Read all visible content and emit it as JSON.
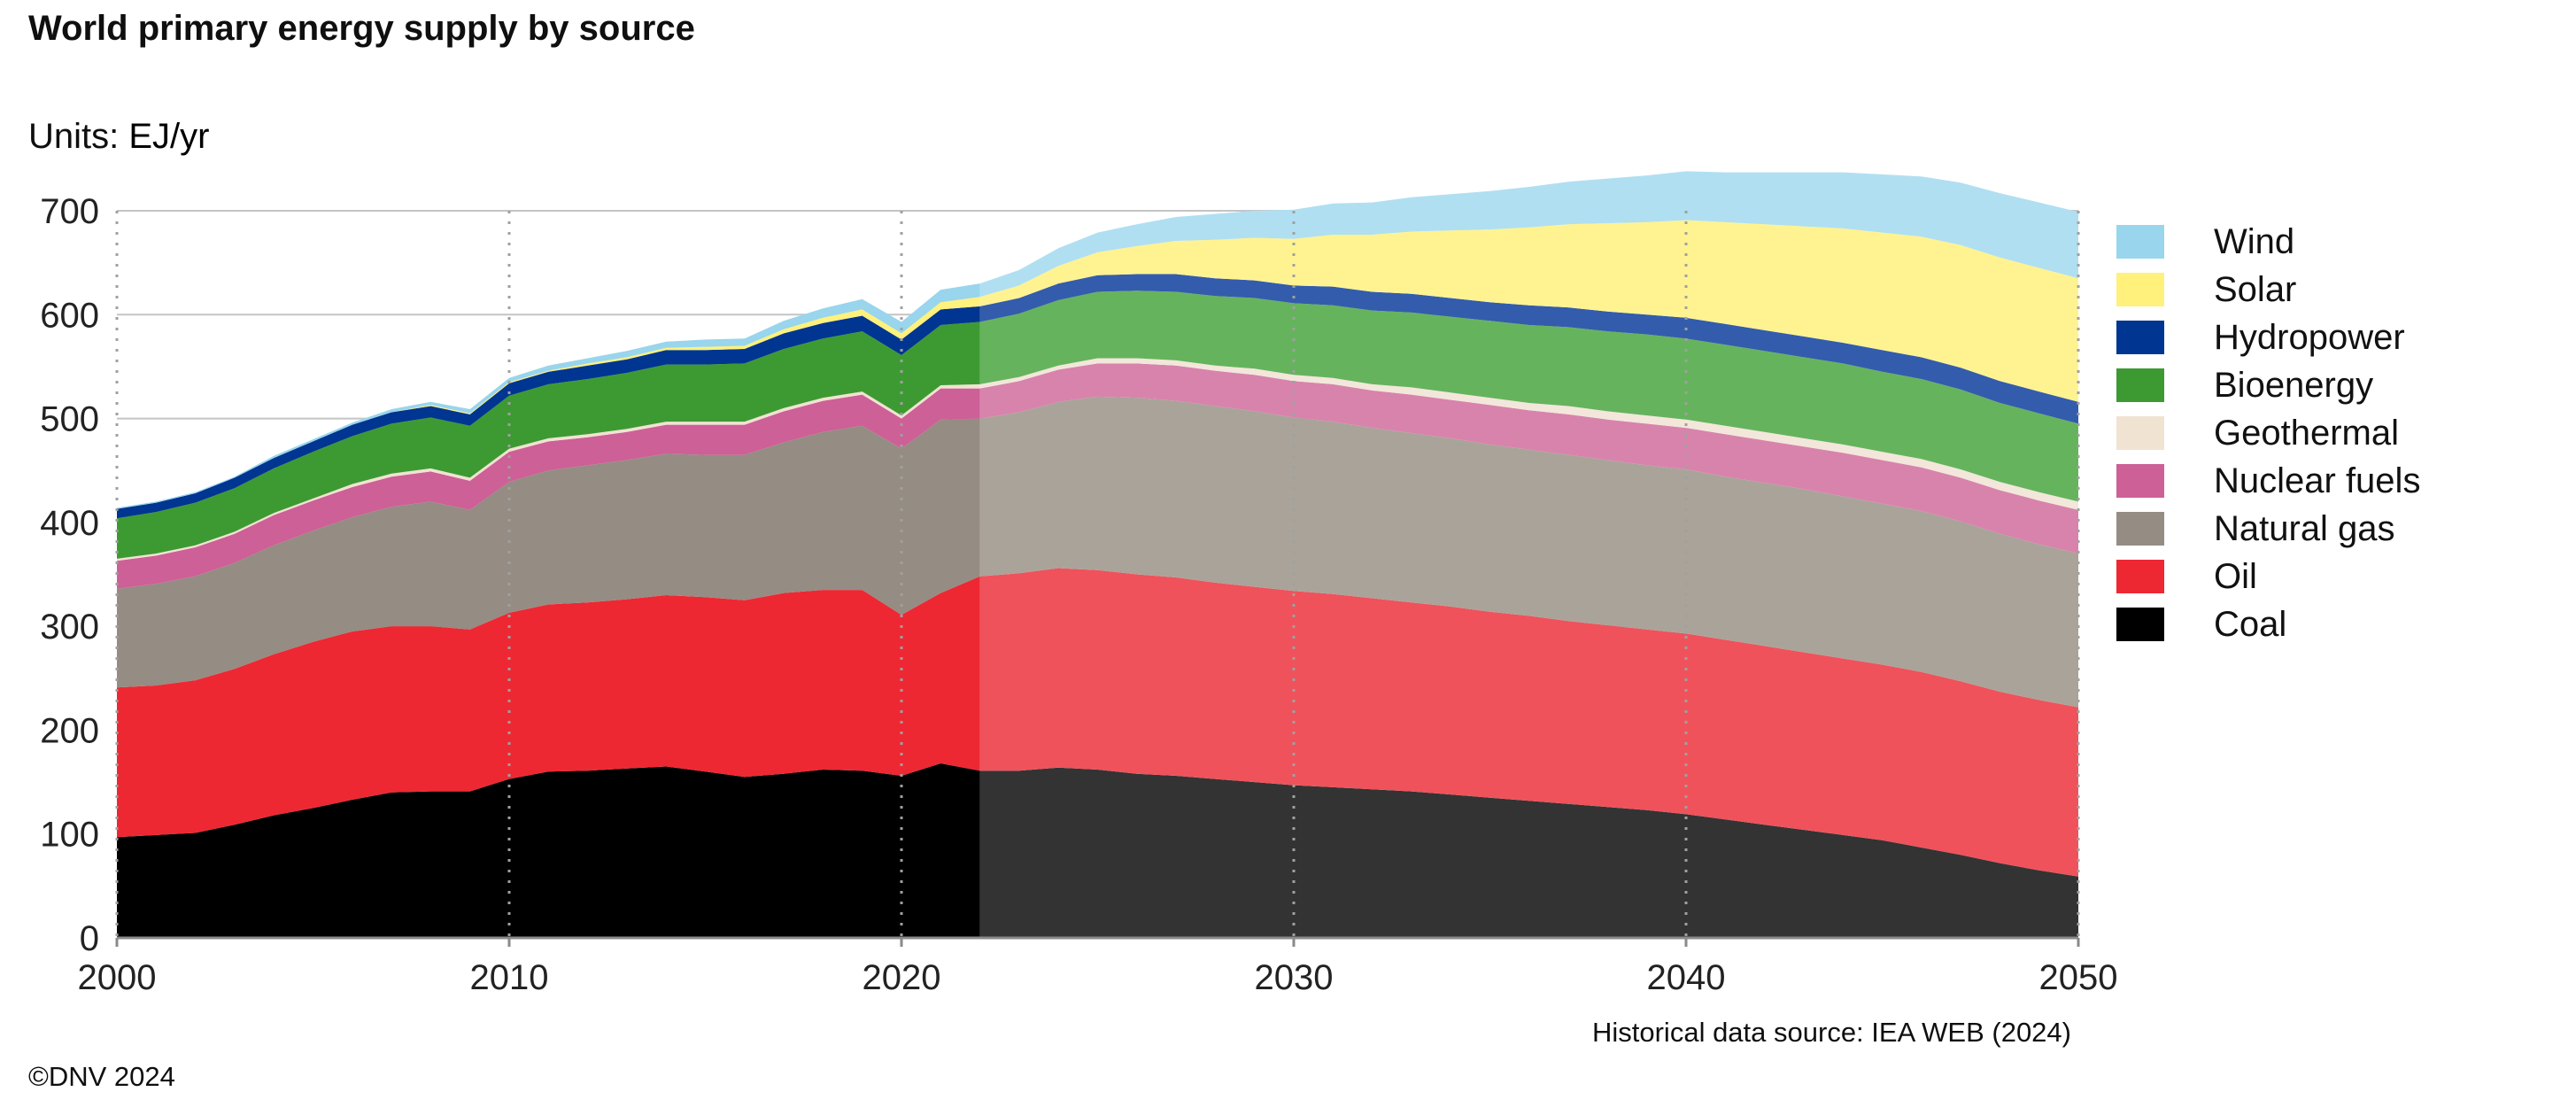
{
  "title": "World primary energy supply by source",
  "units_label": "Units:",
  "units_value": "EJ/yr",
  "source_note": "Historical data source: IEA WEB (2024)",
  "copyright": "©DNV 2024",
  "chart_data": {
    "type": "area",
    "stacked": true,
    "xlim": [
      2000,
      2050
    ],
    "ylim": [
      0,
      700
    ],
    "x_ticks": [
      2000,
      2010,
      2020,
      2030,
      2040,
      2050
    ],
    "y_ticks": [
      0,
      100,
      200,
      300,
      400,
      500,
      600,
      700
    ],
    "historical_end": 2022,
    "grid": "horizontal",
    "legend_position": "right",
    "x": [
      2000,
      2001,
      2002,
      2003,
      2004,
      2005,
      2006,
      2007,
      2008,
      2009,
      2010,
      2011,
      2012,
      2013,
      2014,
      2015,
      2016,
      2017,
      2018,
      2019,
      2020,
      2021,
      2022,
      2023,
      2024,
      2025,
      2026,
      2027,
      2028,
      2029,
      2030,
      2031,
      2032,
      2033,
      2034,
      2035,
      2036,
      2037,
      2038,
      2039,
      2040,
      2041,
      2042,
      2043,
      2044,
      2045,
      2046,
      2047,
      2048,
      2049,
      2050
    ],
    "series": [
      {
        "name": "Coal",
        "color": "#000000",
        "forecast_color": "#333333",
        "values": [
          97,
          99,
          101,
          109,
          118,
          125,
          133,
          140,
          141,
          141,
          153,
          160,
          161,
          163,
          165,
          160,
          155,
          158,
          162,
          161,
          156,
          168,
          161,
          161,
          164,
          162,
          158,
          156,
          153,
          150,
          147,
          145,
          143,
          141,
          138,
          135,
          132,
          129,
          126,
          123,
          119,
          114,
          109,
          104,
          99,
          94,
          87,
          80,
          72,
          65,
          59
        ]
      },
      {
        "name": "Oil",
        "color": "#ed2833",
        "forecast_color": "#ef525b",
        "values": [
          144,
          144,
          147,
          150,
          155,
          160,
          162,
          160,
          159,
          156,
          160,
          161,
          162,
          163,
          165,
          168,
          170,
          174,
          173,
          174,
          155,
          164,
          187,
          190,
          192,
          192,
          192,
          191,
          189,
          188,
          187,
          186,
          184,
          182,
          181,
          179,
          178,
          176,
          175,
          174,
          174,
          173,
          172,
          171,
          170,
          169,
          169,
          167,
          165,
          164,
          163
        ]
      },
      {
        "name": "Natural gas",
        "color": "#958c83",
        "forecast_color": "#aaa39a",
        "values": [
          95,
          98,
          100,
          102,
          105,
          107,
          110,
          115,
          120,
          115,
          126,
          129,
          132,
          134,
          136,
          137,
          140,
          145,
          152,
          158,
          160,
          167,
          152,
          155,
          160,
          167,
          170,
          170,
          170,
          169,
          167,
          166,
          164,
          163,
          162,
          161,
          160,
          160,
          159,
          158,
          158,
          157,
          157,
          157,
          156,
          155,
          155,
          154,
          152,
          150,
          148
        ]
      },
      {
        "name": "Nuclear fuels",
        "color": "#cd6096",
        "forecast_color": "#d883ac",
        "values": [
          27,
          27,
          28,
          28,
          29,
          29,
          29,
          29,
          29,
          28,
          29,
          28,
          27,
          27,
          28,
          29,
          29,
          30,
          30,
          30,
          29,
          30,
          29,
          30,
          31,
          32,
          33,
          34,
          34,
          35,
          35,
          36,
          36,
          37,
          37,
          38,
          38,
          39,
          39,
          40,
          40,
          41,
          41,
          41,
          42,
          42,
          42,
          42,
          42,
          42,
          42
        ]
      },
      {
        "name": "Geothermal",
        "color": "#f0e3d2",
        "forecast_color": "#f2e7da",
        "values": [
          2,
          2,
          2,
          2,
          2,
          2,
          3,
          3,
          3,
          3,
          3,
          3,
          3,
          3,
          3,
          3,
          3,
          3,
          3,
          3,
          3,
          3,
          4,
          4,
          4,
          5,
          5,
          5,
          5,
          6,
          6,
          6,
          6,
          7,
          7,
          7,
          7,
          8,
          8,
          8,
          8,
          8,
          8,
          8,
          8,
          8,
          8,
          8,
          8,
          8,
          8
        ]
      },
      {
        "name": "Bioenergy",
        "color": "#3d9a32",
        "forecast_color": "#66b35e",
        "values": [
          39,
          40,
          41,
          42,
          43,
          45,
          46,
          48,
          49,
          50,
          51,
          52,
          53,
          54,
          55,
          55,
          56,
          57,
          57,
          58,
          58,
          58,
          60,
          61,
          63,
          64,
          65,
          66,
          67,
          68,
          69,
          70,
          71,
          72,
          73,
          74,
          75,
          76,
          77,
          78,
          78,
          78,
          78,
          78,
          78,
          77,
          77,
          77,
          76,
          76,
          75
        ]
      },
      {
        "name": "Hydropower",
        "color": "#003591",
        "forecast_color": "#345cac",
        "values": [
          9,
          9,
          9,
          10,
          10,
          10,
          11,
          11,
          11,
          11,
          12,
          12,
          13,
          13,
          14,
          14,
          14,
          15,
          15,
          15,
          15,
          15,
          15,
          15,
          16,
          16,
          16,
          17,
          17,
          17,
          17,
          18,
          18,
          18,
          18,
          18,
          19,
          19,
          19,
          19,
          20,
          20,
          20,
          20,
          20,
          21,
          21,
          21,
          21,
          21,
          21
        ]
      },
      {
        "name": "Solar",
        "color": "#fff17b",
        "forecast_color": "#fff391",
        "values": [
          0,
          0,
          0,
          0,
          0,
          0,
          0,
          0,
          1,
          1,
          1,
          1,
          2,
          2,
          2,
          3,
          3,
          4,
          5,
          6,
          6,
          7,
          9,
          12,
          17,
          22,
          27,
          32,
          37,
          41,
          45,
          50,
          55,
          60,
          65,
          70,
          75,
          80,
          85,
          89,
          94,
          98,
          102,
          106,
          110,
          113,
          116,
          118,
          119,
          119,
          119
        ]
      },
      {
        "name": "Wind",
        "color": "#99d5ec",
        "forecast_color": "#b0dff2",
        "values": [
          1,
          1,
          1,
          1,
          2,
          2,
          2,
          3,
          3,
          4,
          4,
          5,
          5,
          6,
          6,
          7,
          7,
          8,
          9,
          10,
          11,
          12,
          13,
          15,
          17,
          19,
          21,
          23,
          25,
          26,
          28,
          30,
          31,
          33,
          35,
          37,
          39,
          41,
          43,
          45,
          47,
          48,
          50,
          52,
          54,
          56,
          58,
          60,
          62,
          63,
          64
        ]
      }
    ]
  }
}
